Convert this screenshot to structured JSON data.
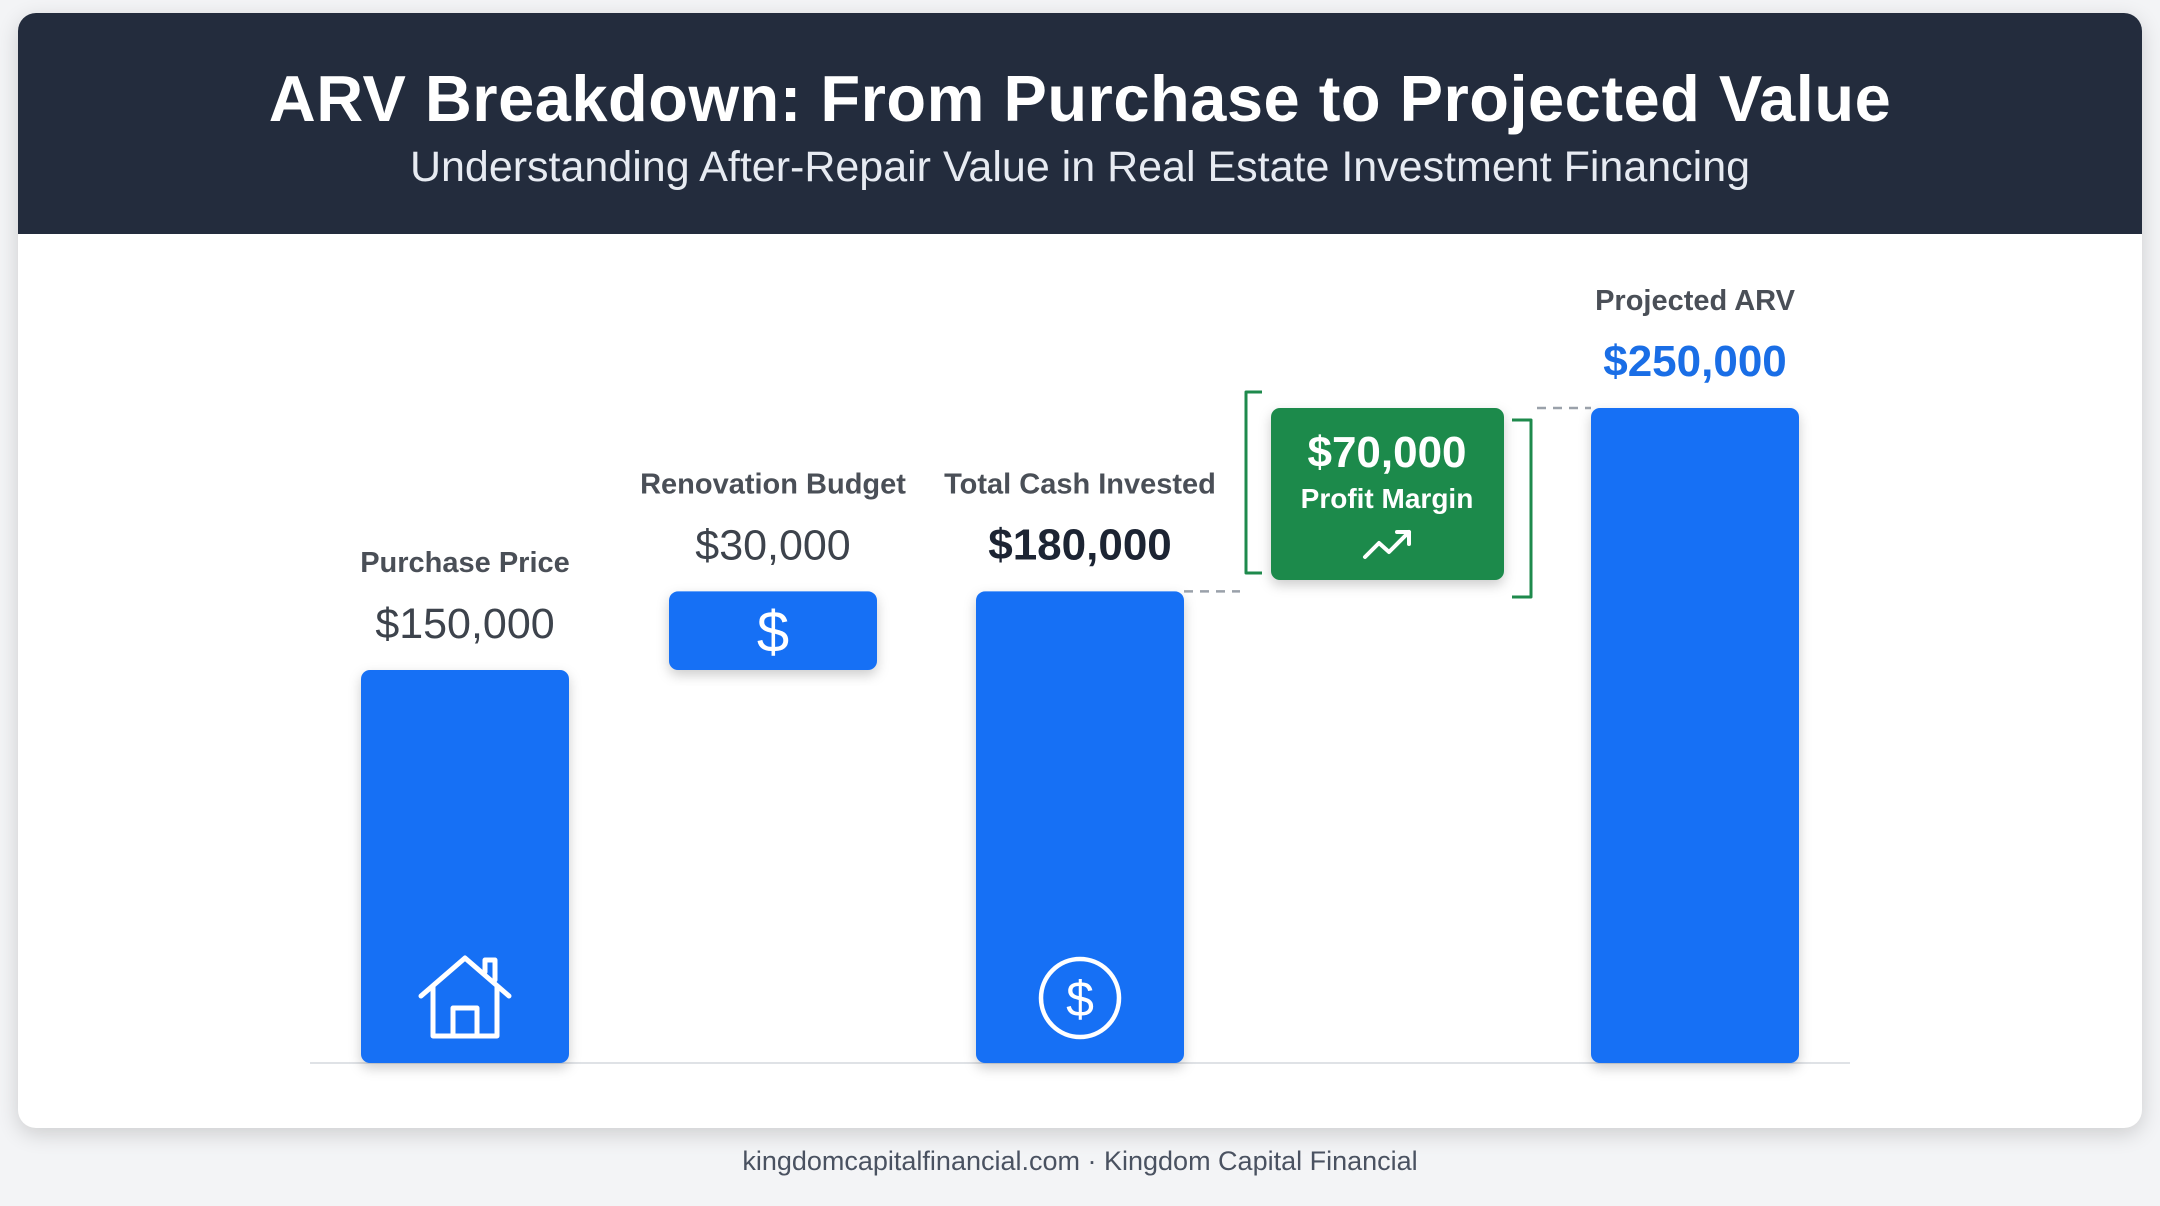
{
  "header": {
    "title": "ARV Breakdown: From Purchase to Projected Value",
    "subtitle": "Understanding After-Repair Value in Real Estate Investment Financing"
  },
  "chart_data": {
    "type": "bar",
    "subtype": "waterfall",
    "categories": [
      "Purchase Price",
      "Renovation Budget",
      "Total Cash Invested",
      "Projected ARV"
    ],
    "values": [
      150000,
      30000,
      180000,
      250000
    ],
    "value_labels": [
      "$150,000",
      "$30,000",
      "$180,000",
      "$250,000"
    ],
    "bar_kinds": [
      "total",
      "increment",
      "total",
      "total"
    ],
    "icons": [
      "house-icon",
      "dollar-icon",
      "dollar-circle-icon",
      null
    ],
    "ylim": [
      0,
      250000
    ],
    "grid": false,
    "colors": {
      "bar": "#1570f5",
      "profit": "#1e8a4c",
      "arv_value": "#1a6ee6",
      "label": "#4a4f57",
      "value": "#3d434c",
      "emphasis": "#1c2433"
    },
    "annotation": {
      "value": 70000,
      "value_label": "$70,000",
      "label": "Profit Margin",
      "icon": "trend-up-icon"
    }
  },
  "footer": {
    "text": "kingdomcapitalfinancial.com · Kingdom Capital Financial"
  }
}
